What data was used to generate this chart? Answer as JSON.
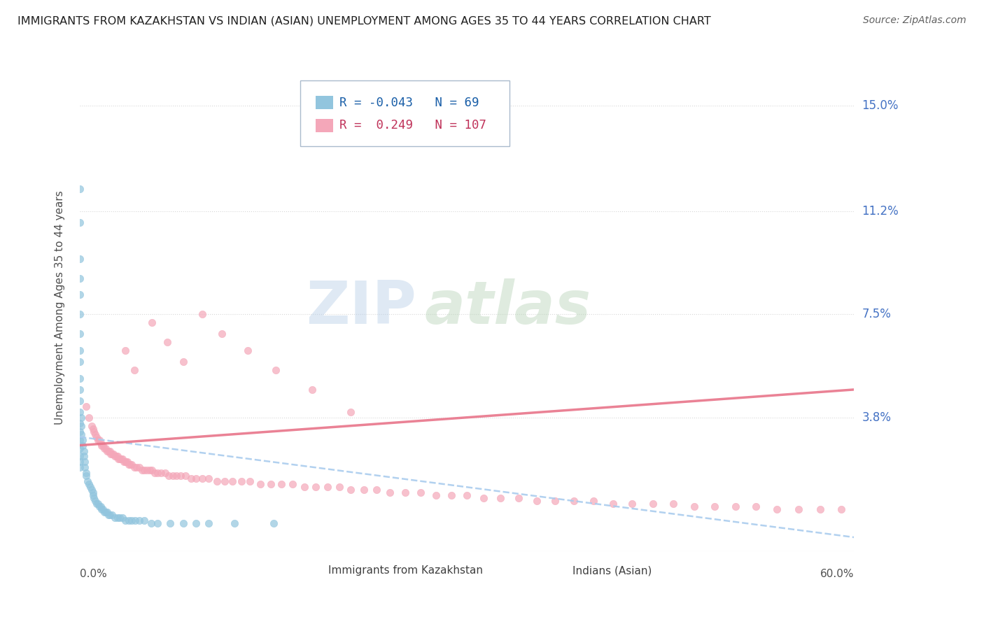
{
  "title": "IMMIGRANTS FROM KAZAKHSTAN VS INDIAN (ASIAN) UNEMPLOYMENT AMONG AGES 35 TO 44 YEARS CORRELATION CHART",
  "source": "Source: ZipAtlas.com",
  "ylabel": "Unemployment Among Ages 35 to 44 years",
  "y_tick_labels": [
    "3.8%",
    "7.5%",
    "11.2%",
    "15.0%"
  ],
  "y_tick_values": [
    0.038,
    0.075,
    0.112,
    0.15
  ],
  "x_range": [
    0.0,
    0.6
  ],
  "y_range": [
    -0.01,
    0.165
  ],
  "legend_kaz_R": "-0.043",
  "legend_kaz_N": "69",
  "legend_ind_R": "0.249",
  "legend_ind_N": "107",
  "color_kaz": "#92c5de",
  "color_ind": "#f4a7b9",
  "color_kaz_line": "#aaccee",
  "color_ind_line": "#e8748a",
  "watermark_text": "ZIP",
  "watermark_text2": "atlas",
  "background_color": "#ffffff",
  "grid_color": "#d8d8d8",
  "kaz_x": [
    0.0,
    0.0,
    0.0,
    0.0,
    0.0,
    0.0,
    0.0,
    0.0,
    0.0,
    0.0,
    0.0,
    0.0,
    0.0,
    0.0,
    0.0,
    0.0,
    0.0,
    0.0,
    0.0,
    0.0,
    0.001,
    0.001,
    0.001,
    0.002,
    0.002,
    0.003,
    0.003,
    0.004,
    0.004,
    0.005,
    0.005,
    0.006,
    0.007,
    0.008,
    0.009,
    0.01,
    0.01,
    0.011,
    0.012,
    0.013,
    0.014,
    0.015,
    0.016,
    0.017,
    0.018,
    0.019,
    0.02,
    0.021,
    0.022,
    0.023,
    0.025,
    0.027,
    0.029,
    0.031,
    0.033,
    0.035,
    0.038,
    0.04,
    0.043,
    0.046,
    0.05,
    0.055,
    0.06,
    0.07,
    0.08,
    0.09,
    0.1,
    0.12,
    0.15
  ],
  "kaz_y": [
    0.12,
    0.108,
    0.095,
    0.088,
    0.082,
    0.075,
    0.068,
    0.062,
    0.058,
    0.052,
    0.048,
    0.044,
    0.04,
    0.036,
    0.033,
    0.03,
    0.027,
    0.024,
    0.022,
    0.02,
    0.038,
    0.035,
    0.032,
    0.03,
    0.028,
    0.026,
    0.024,
    0.022,
    0.02,
    0.018,
    0.017,
    0.015,
    0.014,
    0.013,
    0.012,
    0.011,
    0.01,
    0.009,
    0.008,
    0.007,
    0.007,
    0.006,
    0.006,
    0.005,
    0.005,
    0.004,
    0.004,
    0.004,
    0.003,
    0.003,
    0.003,
    0.002,
    0.002,
    0.002,
    0.002,
    0.001,
    0.001,
    0.001,
    0.001,
    0.001,
    0.001,
    0.0,
    0.0,
    0.0,
    0.0,
    0.0,
    0.0,
    0.0,
    0.0
  ],
  "ind_x": [
    0.005,
    0.007,
    0.009,
    0.01,
    0.011,
    0.012,
    0.013,
    0.014,
    0.015,
    0.016,
    0.017,
    0.018,
    0.019,
    0.02,
    0.021,
    0.022,
    0.023,
    0.024,
    0.025,
    0.026,
    0.027,
    0.028,
    0.029,
    0.03,
    0.031,
    0.032,
    0.033,
    0.034,
    0.035,
    0.036,
    0.037,
    0.038,
    0.039,
    0.04,
    0.042,
    0.044,
    0.046,
    0.048,
    0.05,
    0.052,
    0.054,
    0.056,
    0.058,
    0.06,
    0.063,
    0.066,
    0.069,
    0.072,
    0.075,
    0.078,
    0.082,
    0.086,
    0.09,
    0.095,
    0.1,
    0.106,
    0.112,
    0.118,
    0.125,
    0.132,
    0.14,
    0.148,
    0.156,
    0.165,
    0.174,
    0.183,
    0.192,
    0.201,
    0.21,
    0.22,
    0.23,
    0.24,
    0.252,
    0.264,
    0.276,
    0.288,
    0.3,
    0.313,
    0.326,
    0.34,
    0.354,
    0.368,
    0.383,
    0.398,
    0.413,
    0.428,
    0.444,
    0.46,
    0.476,
    0.492,
    0.508,
    0.524,
    0.54,
    0.557,
    0.574,
    0.59,
    0.035,
    0.042,
    0.056,
    0.068,
    0.08,
    0.095,
    0.11,
    0.13,
    0.152,
    0.18,
    0.21
  ],
  "ind_y": [
    0.042,
    0.038,
    0.035,
    0.034,
    0.033,
    0.032,
    0.031,
    0.03,
    0.03,
    0.029,
    0.028,
    0.028,
    0.027,
    0.027,
    0.026,
    0.026,
    0.026,
    0.025,
    0.025,
    0.025,
    0.024,
    0.024,
    0.024,
    0.023,
    0.023,
    0.023,
    0.023,
    0.022,
    0.022,
    0.022,
    0.022,
    0.021,
    0.021,
    0.021,
    0.02,
    0.02,
    0.02,
    0.019,
    0.019,
    0.019,
    0.019,
    0.019,
    0.018,
    0.018,
    0.018,
    0.018,
    0.017,
    0.017,
    0.017,
    0.017,
    0.017,
    0.016,
    0.016,
    0.016,
    0.016,
    0.015,
    0.015,
    0.015,
    0.015,
    0.015,
    0.014,
    0.014,
    0.014,
    0.014,
    0.013,
    0.013,
    0.013,
    0.013,
    0.012,
    0.012,
    0.012,
    0.011,
    0.011,
    0.011,
    0.01,
    0.01,
    0.01,
    0.009,
    0.009,
    0.009,
    0.008,
    0.008,
    0.008,
    0.008,
    0.007,
    0.007,
    0.007,
    0.007,
    0.006,
    0.006,
    0.006,
    0.006,
    0.005,
    0.005,
    0.005,
    0.005,
    0.062,
    0.055,
    0.072,
    0.065,
    0.058,
    0.075,
    0.068,
    0.062,
    0.055,
    0.048,
    0.04
  ],
  "kaz_line_x0": 0.0,
  "kaz_line_x1": 0.6,
  "kaz_line_y0": 0.031,
  "kaz_line_y1": -0.005,
  "ind_line_x0": 0.0,
  "ind_line_x1": 0.6,
  "ind_line_y0": 0.028,
  "ind_line_y1": 0.048
}
